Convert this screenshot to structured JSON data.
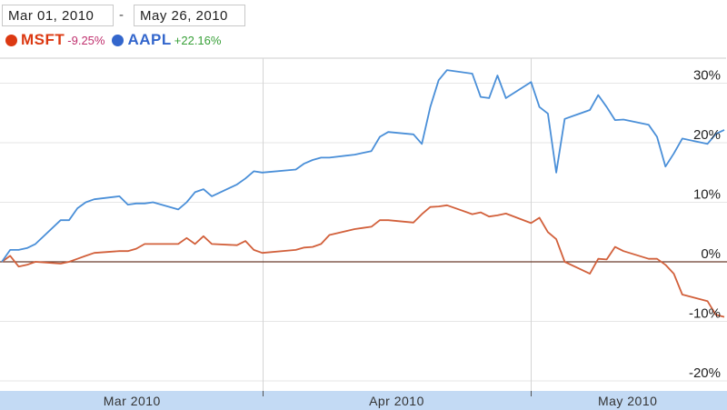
{
  "range": {
    "start": "Mar 01, 2010",
    "separator": "-",
    "end": "May 26, 2010"
  },
  "colors": {
    "msft": "#dc3912",
    "aapl": "#3366cc",
    "msft_change": "#c0306e",
    "aapl_change": "#38a038",
    "msft_line": "#d2603b",
    "aapl_line": "#4a8fd8",
    "zero_line": "#6b3a2a",
    "grid": "#e6e6e6",
    "month_grid": "#d4d4d4",
    "axis_bar": "#c3daf4"
  },
  "legend": [
    {
      "ticker": "MSFT",
      "change": "-9.25%"
    },
    {
      "ticker": "AAPL",
      "change": "+22.16%"
    }
  ],
  "chart_data": {
    "type": "line",
    "y_ticks": [
      30,
      20,
      10,
      0,
      -10,
      -20
    ],
    "y_tick_labels": [
      "30%",
      "20%",
      "10%",
      "0%",
      "-10%",
      "-20%"
    ],
    "ylim": [
      -20.5,
      34.5
    ],
    "x_months": [
      "Mar 2010",
      "Apr 2010",
      "May 2010"
    ],
    "x": [
      "2010-03-01",
      "2010-03-02",
      "2010-03-03",
      "2010-03-04",
      "2010-03-05",
      "2010-03-08",
      "2010-03-09",
      "2010-03-10",
      "2010-03-11",
      "2010-03-12",
      "2010-03-15",
      "2010-03-16",
      "2010-03-17",
      "2010-03-18",
      "2010-03-19",
      "2010-03-22",
      "2010-03-23",
      "2010-03-24",
      "2010-03-25",
      "2010-03-26",
      "2010-03-29",
      "2010-03-30",
      "2010-03-31",
      "2010-04-01",
      "2010-04-05",
      "2010-04-06",
      "2010-04-07",
      "2010-04-08",
      "2010-04-09",
      "2010-04-12",
      "2010-04-13",
      "2010-04-14",
      "2010-04-15",
      "2010-04-16",
      "2010-04-19",
      "2010-04-20",
      "2010-04-21",
      "2010-04-22",
      "2010-04-23",
      "2010-04-26",
      "2010-04-27",
      "2010-04-28",
      "2010-04-29",
      "2010-04-30",
      "2010-05-03",
      "2010-05-04",
      "2010-05-05",
      "2010-05-06",
      "2010-05-07",
      "2010-05-10",
      "2010-05-11",
      "2010-05-12",
      "2010-05-13",
      "2010-05-14",
      "2010-05-17",
      "2010-05-18",
      "2010-05-19",
      "2010-05-20",
      "2010-05-21",
      "2010-05-24",
      "2010-05-25",
      "2010-05-26"
    ],
    "series": [
      {
        "name": "MSFT",
        "values": [
          0,
          1,
          -0.8,
          -0.5,
          0,
          -0.3,
          0,
          0.5,
          1,
          1.5,
          1.8,
          1.8,
          2.2,
          3,
          3,
          3,
          4,
          3,
          4.3,
          3,
          2.8,
          3.5,
          2,
          1.5,
          2,
          2.4,
          2.5,
          3,
          4.5,
          5.5,
          5.7,
          5.9,
          7,
          7,
          6.6,
          8,
          9.2,
          9.3,
          9.5,
          8,
          8.3,
          7.6,
          7.8,
          8.1,
          6.5,
          7.4,
          5,
          3.8,
          0,
          -2,
          0.5,
          0.4,
          2.5,
          1.8,
          0.5,
          0.5,
          -0.5,
          -2,
          -5.5,
          -6.6,
          -8.9,
          -9.25
        ]
      },
      {
        "name": "AAPL",
        "values": [
          0,
          2,
          2,
          2.3,
          3,
          7,
          7,
          9,
          10,
          10.5,
          11,
          9.6,
          9.8,
          9.8,
          10,
          8.8,
          10,
          11.7,
          12.2,
          11,
          13,
          14,
          15.2,
          15,
          15.5,
          16.5,
          17.1,
          17.5,
          17.5,
          18,
          18.3,
          18.6,
          21,
          21.8,
          21.4,
          19.8,
          26,
          30.5,
          32.2,
          31.6,
          27.7,
          27.5,
          31.3,
          27.5,
          30.2,
          26,
          24.9,
          15,
          24,
          25.5,
          28,
          26,
          23.8,
          23.9,
          23,
          21,
          16,
          18.2,
          20.7,
          19.8,
          21.5,
          22.16
        ]
      }
    ]
  }
}
